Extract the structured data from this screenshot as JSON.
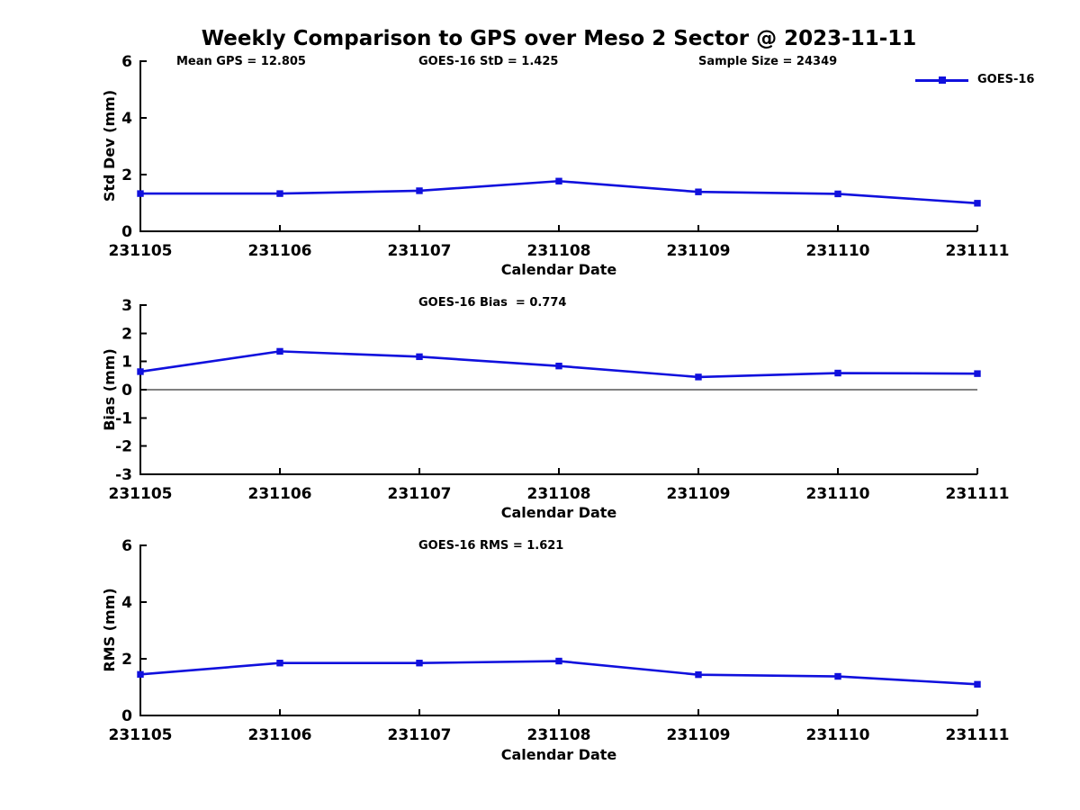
{
  "figure": {
    "line_color": "#1010dd",
    "axis_color": "#000000",
    "background": "#ffffff"
  },
  "chart_data": [
    {
      "id": "std-dev",
      "type": "line",
      "title": "Weekly Comparison to GPS over Meso 2 Sector @ 2023-11-11",
      "annotations": [
        "Mean GPS = 12.805",
        "GOES-16 StD = 1.425",
        "Sample Size = 24349"
      ],
      "stats": {
        "mean_gps": 12.805,
        "goes16_std": 1.425,
        "sample_size": 24349
      },
      "legend": {
        "label": "GOES-16",
        "position": "upper right"
      },
      "categories": [
        "231105",
        "231106",
        "231107",
        "231108",
        "231109",
        "231110",
        "231111"
      ],
      "series": [
        {
          "name": "GOES-16",
          "values": [
            1.33,
            1.33,
            1.43,
            1.77,
            1.39,
            1.32,
            0.99
          ]
        }
      ],
      "xlabel": "Calendar Date",
      "ylabel": "Std Dev (mm)",
      "ylim": [
        0,
        6
      ],
      "yticks": [
        0,
        2,
        4,
        6
      ],
      "grid": false,
      "zero_line": false
    },
    {
      "id": "bias",
      "type": "line",
      "title": "GOES-16 Bias  = 0.774",
      "stats": {
        "goes16_bias": 0.774
      },
      "categories": [
        "231105",
        "231106",
        "231107",
        "231108",
        "231109",
        "231110",
        "231111"
      ],
      "series": [
        {
          "name": "GOES-16",
          "values": [
            0.64,
            1.36,
            1.17,
            0.84,
            0.45,
            0.59,
            0.57
          ]
        }
      ],
      "xlabel": "Calendar Date",
      "ylabel": "Bias (mm)",
      "ylim": [
        -3,
        3
      ],
      "yticks": [
        -3,
        -2,
        -1,
        0,
        1,
        2,
        3
      ],
      "grid": false,
      "zero_line": true
    },
    {
      "id": "rms",
      "type": "line",
      "title": "GOES-16 RMS = 1.621",
      "stats": {
        "goes16_rms": 1.621
      },
      "categories": [
        "231105",
        "231106",
        "231107",
        "231108",
        "231109",
        "231110",
        "231111"
      ],
      "series": [
        {
          "name": "GOES-16",
          "values": [
            1.45,
            1.85,
            1.85,
            1.92,
            1.44,
            1.38,
            1.1
          ]
        }
      ],
      "xlabel": "Calendar Date",
      "ylabel": "RMS (mm)",
      "ylim": [
        0,
        6
      ],
      "yticks": [
        0,
        2,
        4,
        6
      ],
      "grid": false,
      "zero_line": false
    }
  ]
}
